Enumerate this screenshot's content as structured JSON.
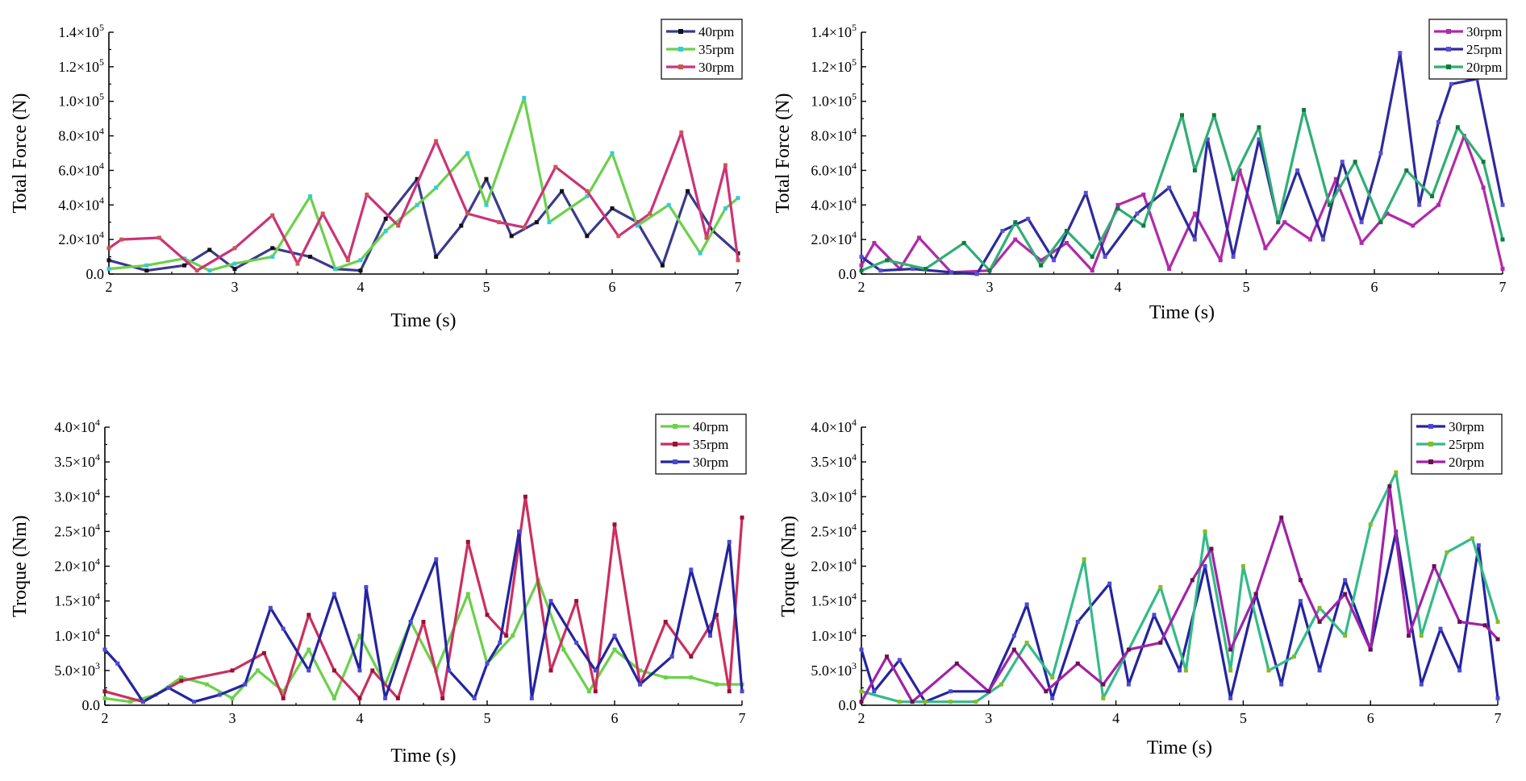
{
  "chart_data": [
    {
      "type": "line",
      "xlabel": "Time (s)",
      "ylabel": "Total Force (N)",
      "xlim": [
        2,
        7
      ],
      "ylim": [
        0,
        140000
      ],
      "xticks": [
        "2",
        "3",
        "4",
        "5",
        "6",
        "7"
      ],
      "yticks": [
        {
          "base": "0.0",
          "exp": ""
        },
        {
          "base": "2.0×10",
          "exp": "4"
        },
        {
          "base": "4.0×10",
          "exp": "4"
        },
        {
          "base": "6.0×10",
          "exp": "4"
        },
        {
          "base": "8.0×10",
          "exp": "4"
        },
        {
          "base": "1.0×10",
          "exp": "5"
        },
        {
          "base": "1.2×10",
          "exp": "5"
        },
        {
          "base": "1.4×10",
          "exp": "5"
        }
      ],
      "legend_position": "top-right",
      "grid": false,
      "series": [
        {
          "name": "40rpm",
          "color": "#3a3a8c",
          "marker": "#111111",
          "x": [
            2.0,
            2.3,
            2.6,
            2.8,
            3.0,
            3.3,
            3.6,
            3.8,
            4.0,
            4.2,
            4.45,
            4.6,
            4.8,
            5.0,
            5.2,
            5.4,
            5.6,
            5.8,
            6.0,
            6.2,
            6.4,
            6.6,
            6.8,
            7.0
          ],
          "values": [
            8000,
            2000,
            5000,
            14000,
            3000,
            15000,
            10000,
            3000,
            2000,
            32000,
            55000,
            10000,
            28000,
            55000,
            22000,
            30000,
            48000,
            22000,
            38000,
            30000,
            5000,
            48000,
            25000,
            12000
          ]
        },
        {
          "name": "35rpm",
          "color": "#6ad14a",
          "marker": "#33ccdd",
          "x": [
            2.0,
            2.3,
            2.6,
            2.8,
            3.0,
            3.3,
            3.6,
            3.8,
            4.0,
            4.2,
            4.45,
            4.6,
            4.85,
            5.0,
            5.3,
            5.5,
            5.8,
            6.0,
            6.2,
            6.45,
            6.7,
            6.9,
            7.0
          ],
          "values": [
            3000,
            5000,
            9000,
            2000,
            6000,
            10000,
            45000,
            3000,
            8000,
            25000,
            40000,
            50000,
            70000,
            40000,
            102000,
            30000,
            45000,
            70000,
            28000,
            40000,
            12000,
            38000,
            44000
          ]
        },
        {
          "name": "30rpm",
          "color": "#cc3377",
          "marker": "#cc5555",
          "x": [
            2.0,
            2.1,
            2.4,
            2.7,
            3.0,
            3.3,
            3.5,
            3.7,
            3.9,
            4.05,
            4.3,
            4.6,
            4.85,
            5.1,
            5.3,
            5.55,
            5.8,
            6.05,
            6.3,
            6.55,
            6.75,
            6.9,
            7.0
          ],
          "values": [
            15000,
            20000,
            21000,
            2000,
            15000,
            34000,
            6000,
            35000,
            8000,
            46000,
            28000,
            77000,
            35000,
            30000,
            27000,
            62000,
            48000,
            22000,
            35000,
            82000,
            21000,
            63000,
            8000
          ]
        }
      ]
    },
    {
      "type": "line",
      "xlabel": "Time (s)",
      "ylabel": "Total Force (N)",
      "xlim": [
        2,
        7
      ],
      "ylim": [
        0,
        140000
      ],
      "xticks": [
        "2",
        "3",
        "4",
        "5",
        "6",
        "7"
      ],
      "yticks": [
        {
          "base": "0.0",
          "exp": ""
        },
        {
          "base": "2.0×10",
          "exp": "4"
        },
        {
          "base": "4.0×10",
          "exp": "4"
        },
        {
          "base": "6.0×10",
          "exp": "4"
        },
        {
          "base": "8.0×10",
          "exp": "4"
        },
        {
          "base": "1.0×10",
          "exp": "5"
        },
        {
          "base": "1.2×10",
          "exp": "5"
        },
        {
          "base": "1.4×10",
          "exp": "5"
        }
      ],
      "legend_position": "top-right",
      "grid": false,
      "series": [
        {
          "name": "30rpm",
          "color": "#b02aa8",
          "marker": "#b02aa8",
          "x": [
            2.0,
            2.1,
            2.3,
            2.45,
            2.7,
            3.0,
            3.2,
            3.4,
            3.6,
            3.8,
            4.0,
            4.2,
            4.4,
            4.6,
            4.8,
            4.95,
            5.15,
            5.3,
            5.5,
            5.7,
            5.9,
            6.1,
            6.3,
            6.5,
            6.7,
            6.85,
            7.0
          ],
          "values": [
            5000,
            18000,
            3000,
            21000,
            1000,
            2000,
            20000,
            8000,
            18000,
            2000,
            40000,
            46000,
            3000,
            35000,
            8000,
            60000,
            15000,
            30000,
            20000,
            55000,
            18000,
            35000,
            28000,
            40000,
            80000,
            50000,
            3000
          ]
        },
        {
          "name": "25rpm",
          "color": "#2e2a9e",
          "marker": "#5a4fd6",
          "x": [
            2.0,
            2.15,
            2.4,
            2.7,
            2.9,
            3.1,
            3.3,
            3.5,
            3.75,
            3.9,
            4.15,
            4.4,
            4.6,
            4.7,
            4.9,
            5.1,
            5.25,
            5.4,
            5.6,
            5.75,
            5.9,
            6.05,
            6.2,
            6.35,
            6.5,
            6.6,
            6.8,
            7.0
          ],
          "values": [
            10000,
            2000,
            3000,
            1000,
            0,
            25000,
            32000,
            8000,
            47000,
            10000,
            35000,
            50000,
            20000,
            78000,
            10000,
            78000,
            30000,
            60000,
            20000,
            65000,
            30000,
            70000,
            128000,
            40000,
            88000,
            110000,
            113000,
            40000
          ]
        },
        {
          "name": "20rpm",
          "color": "#2fae74",
          "marker": "#117a3a",
          "x": [
            2.0,
            2.2,
            2.5,
            2.8,
            3.0,
            3.2,
            3.4,
            3.6,
            3.8,
            4.0,
            4.2,
            4.5,
            4.6,
            4.75,
            4.9,
            5.1,
            5.25,
            5.45,
            5.65,
            5.85,
            6.05,
            6.25,
            6.45,
            6.65,
            6.85,
            7.0
          ],
          "values": [
            2000,
            8000,
            3000,
            18000,
            2000,
            30000,
            5000,
            25000,
            10000,
            38000,
            28000,
            92000,
            60000,
            92000,
            55000,
            85000,
            30000,
            95000,
            40000,
            65000,
            30000,
            60000,
            45000,
            85000,
            65000,
            20000
          ]
        }
      ]
    },
    {
      "type": "line",
      "xlabel": "Time (s)",
      "ylabel": "Troque (Nm)",
      "xlim": [
        2,
        7
      ],
      "ylim": [
        0,
        40000
      ],
      "xticks": [
        "2",
        "3",
        "4",
        "5",
        "6",
        "7"
      ],
      "yticks": [
        {
          "base": "0.0",
          "exp": ""
        },
        {
          "base": "5.0×10",
          "exp": "3"
        },
        {
          "base": "1.0×10",
          "exp": "4"
        },
        {
          "base": "1.5×10",
          "exp": "4"
        },
        {
          "base": "2.0×10",
          "exp": "4"
        },
        {
          "base": "2.5×10",
          "exp": "4"
        },
        {
          "base": "3.0×10",
          "exp": "4"
        },
        {
          "base": "3.5×10",
          "exp": "4"
        },
        {
          "base": "4.0×10",
          "exp": "4"
        }
      ],
      "legend_position": "top-right",
      "grid": false,
      "series": [
        {
          "name": "40rpm",
          "color": "#6ad14a",
          "marker": "#6ad14a",
          "x": [
            2.0,
            2.2,
            2.4,
            2.6,
            2.8,
            3.0,
            3.2,
            3.4,
            3.6,
            3.8,
            4.0,
            4.2,
            4.4,
            4.6,
            4.85,
            5.0,
            5.2,
            5.4,
            5.6,
            5.8,
            6.0,
            6.2,
            6.4,
            6.6,
            6.8,
            7.0
          ],
          "values": [
            1000,
            500,
            1500,
            4000,
            3000,
            1000,
            5000,
            2000,
            8000,
            1000,
            10000,
            3000,
            12000,
            5000,
            16000,
            6000,
            10000,
            18000,
            8000,
            2000,
            8000,
            5000,
            4000,
            4000,
            3000,
            3000
          ]
        },
        {
          "name": "35rpm",
          "color": "#cc2f5f",
          "marker": "#991133",
          "x": [
            2.0,
            2.3,
            2.6,
            3.0,
            3.25,
            3.4,
            3.6,
            3.8,
            4.0,
            4.1,
            4.3,
            4.5,
            4.65,
            4.85,
            5.0,
            5.15,
            5.3,
            5.5,
            5.7,
            5.85,
            6.0,
            6.2,
            6.4,
            6.6,
            6.8,
            6.9,
            7.0
          ],
          "values": [
            2000,
            500,
            3500,
            5000,
            7500,
            1000,
            13000,
            5000,
            1000,
            5000,
            1000,
            12000,
            1000,
            23500,
            13000,
            10000,
            30000,
            5000,
            15000,
            2000,
            26000,
            3000,
            12000,
            7000,
            13000,
            2000,
            27000
          ]
        },
        {
          "name": "30rpm",
          "color": "#2424a0",
          "marker": "#4a4ad6",
          "x": [
            2.0,
            2.1,
            2.3,
            2.5,
            2.7,
            2.9,
            3.1,
            3.3,
            3.4,
            3.6,
            3.8,
            4.0,
            4.05,
            4.2,
            4.4,
            4.6,
            4.7,
            4.9,
            5.0,
            5.1,
            5.25,
            5.35,
            5.5,
            5.7,
            5.85,
            6.0,
            6.2,
            6.45,
            6.6,
            6.75,
            6.9,
            7.0
          ],
          "values": [
            8000,
            6000,
            500,
            2500,
            500,
            1500,
            3000,
            14000,
            11000,
            5000,
            16000,
            5000,
            17000,
            1000,
            12000,
            21000,
            5000,
            1000,
            6000,
            9000,
            25000,
            1000,
            15000,
            9000,
            5000,
            10000,
            3000,
            7000,
            19500,
            10000,
            23500,
            2000
          ]
        }
      ]
    },
    {
      "type": "line",
      "xlabel": "Time (s)",
      "ylabel": "Torque (Nm)",
      "xlim": [
        2,
        7
      ],
      "ylim": [
        0,
        40000
      ],
      "xticks": [
        "2",
        "3",
        "4",
        "5",
        "6",
        "7"
      ],
      "yticks": [
        {
          "base": "0.0",
          "exp": ""
        },
        {
          "base": "5.0×10",
          "exp": "3"
        },
        {
          "base": "1.0×10",
          "exp": "4"
        },
        {
          "base": "1.5×10",
          "exp": "4"
        },
        {
          "base": "2.0×10",
          "exp": "4"
        },
        {
          "base": "2.5×10",
          "exp": "4"
        },
        {
          "base": "3.0×10",
          "exp": "4"
        },
        {
          "base": "3.5×10",
          "exp": "4"
        },
        {
          "base": "4.0×10",
          "exp": "4"
        }
      ],
      "legend_position": "top-right",
      "grid": false,
      "series": [
        {
          "name": "30rpm",
          "color": "#2424a0",
          "marker": "#4a4ad6",
          "x": [
            2.0,
            2.1,
            2.3,
            2.5,
            2.7,
            3.0,
            3.2,
            3.3,
            3.5,
            3.7,
            3.95,
            4.1,
            4.3,
            4.5,
            4.7,
            4.9,
            5.1,
            5.3,
            5.45,
            5.6,
            5.8,
            6.0,
            6.2,
            6.4,
            6.55,
            6.7,
            6.85,
            7.0
          ],
          "values": [
            8000,
            2000,
            6500,
            500,
            2000,
            2000,
            10000,
            14500,
            1000,
            12000,
            17500,
            3000,
            13000,
            5000,
            20000,
            1000,
            16000,
            3000,
            15000,
            5000,
            18000,
            8000,
            25000,
            3000,
            11000,
            5000,
            23000,
            1000
          ]
        },
        {
          "name": "25rpm",
          "color": "#33bb88",
          "marker": "#88bb22",
          "x": [
            2.0,
            2.3,
            2.5,
            2.7,
            2.9,
            3.1,
            3.3,
            3.5,
            3.75,
            3.9,
            4.1,
            4.35,
            4.55,
            4.7,
            4.9,
            5.0,
            5.2,
            5.4,
            5.6,
            5.8,
            6.0,
            6.2,
            6.4,
            6.6,
            6.8,
            7.0
          ],
          "values": [
            2000,
            500,
            500,
            500,
            500,
            3000,
            9000,
            4000,
            21000,
            1000,
            8000,
            17000,
            5000,
            25000,
            5000,
            20000,
            5000,
            7000,
            14000,
            10000,
            26000,
            33500,
            10000,
            22000,
            24000,
            12000
          ]
        },
        {
          "name": "20rpm",
          "color": "#a023a8",
          "marker": "#6a1050",
          "x": [
            2.0,
            2.2,
            2.4,
            2.75,
            3.0,
            3.2,
            3.45,
            3.7,
            3.9,
            4.1,
            4.35,
            4.6,
            4.75,
            4.9,
            5.1,
            5.3,
            5.45,
            5.6,
            5.8,
            6.0,
            6.15,
            6.3,
            6.5,
            6.7,
            6.9,
            7.0
          ],
          "values": [
            500,
            7000,
            500,
            6000,
            2000,
            8000,
            2000,
            6000,
            3000,
            8000,
            9000,
            18000,
            22500,
            8000,
            16000,
            27000,
            18000,
            12000,
            16000,
            8000,
            31500,
            10000,
            20000,
            12000,
            11500,
            9500
          ]
        }
      ]
    }
  ]
}
